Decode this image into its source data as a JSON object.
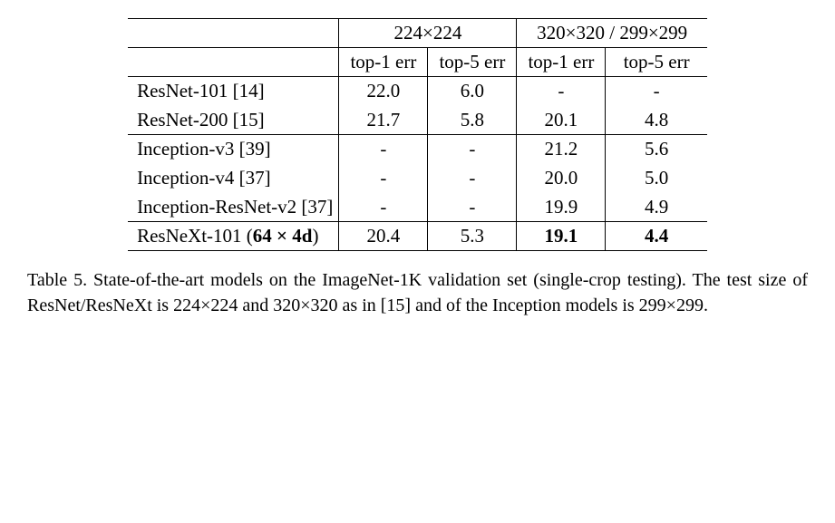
{
  "header": {
    "group1": "224×224",
    "group2": "320×320 / 299×299",
    "sub": [
      "top-1 err",
      "top-5 err",
      "top-1 err",
      "top-5 err"
    ]
  },
  "rows": [
    {
      "label": "ResNet-101 [14]",
      "v": [
        "22.0",
        "6.0",
        "-",
        "-"
      ],
      "bold": [
        false,
        false,
        false,
        false
      ]
    },
    {
      "label": "ResNet-200 [15]",
      "v": [
        "21.7",
        "5.8",
        "20.1",
        "4.8"
      ],
      "bold": [
        false,
        false,
        false,
        false
      ]
    },
    {
      "label": "Inception-v3 [39]",
      "v": [
        "-",
        "-",
        "21.2",
        "5.6"
      ],
      "bold": [
        false,
        false,
        false,
        false
      ]
    },
    {
      "label": "Inception-v4 [37]",
      "v": [
        "-",
        "-",
        "20.0",
        "5.0"
      ],
      "bold": [
        false,
        false,
        false,
        false
      ]
    },
    {
      "label": "Inception-ResNet-v2 [37]",
      "v": [
        "-",
        "-",
        "19.9",
        "4.9"
      ],
      "bold": [
        false,
        false,
        false,
        false
      ]
    },
    {
      "label_pre": "ResNeXt-101 (",
      "label_mid": "64 × 4d",
      "label_post": ")",
      "v": [
        "20.4",
        "5.3",
        "19.1",
        "4.4"
      ],
      "bold": [
        false,
        false,
        true,
        true
      ]
    }
  ],
  "caption": "Table 5. State-of-the-art models on the ImageNet-1K validation set (single-crop testing).  The test size of ResNet/ResNeXt is 224×224 and 320×320 as in [15] and of the Inception models is 299×299."
}
